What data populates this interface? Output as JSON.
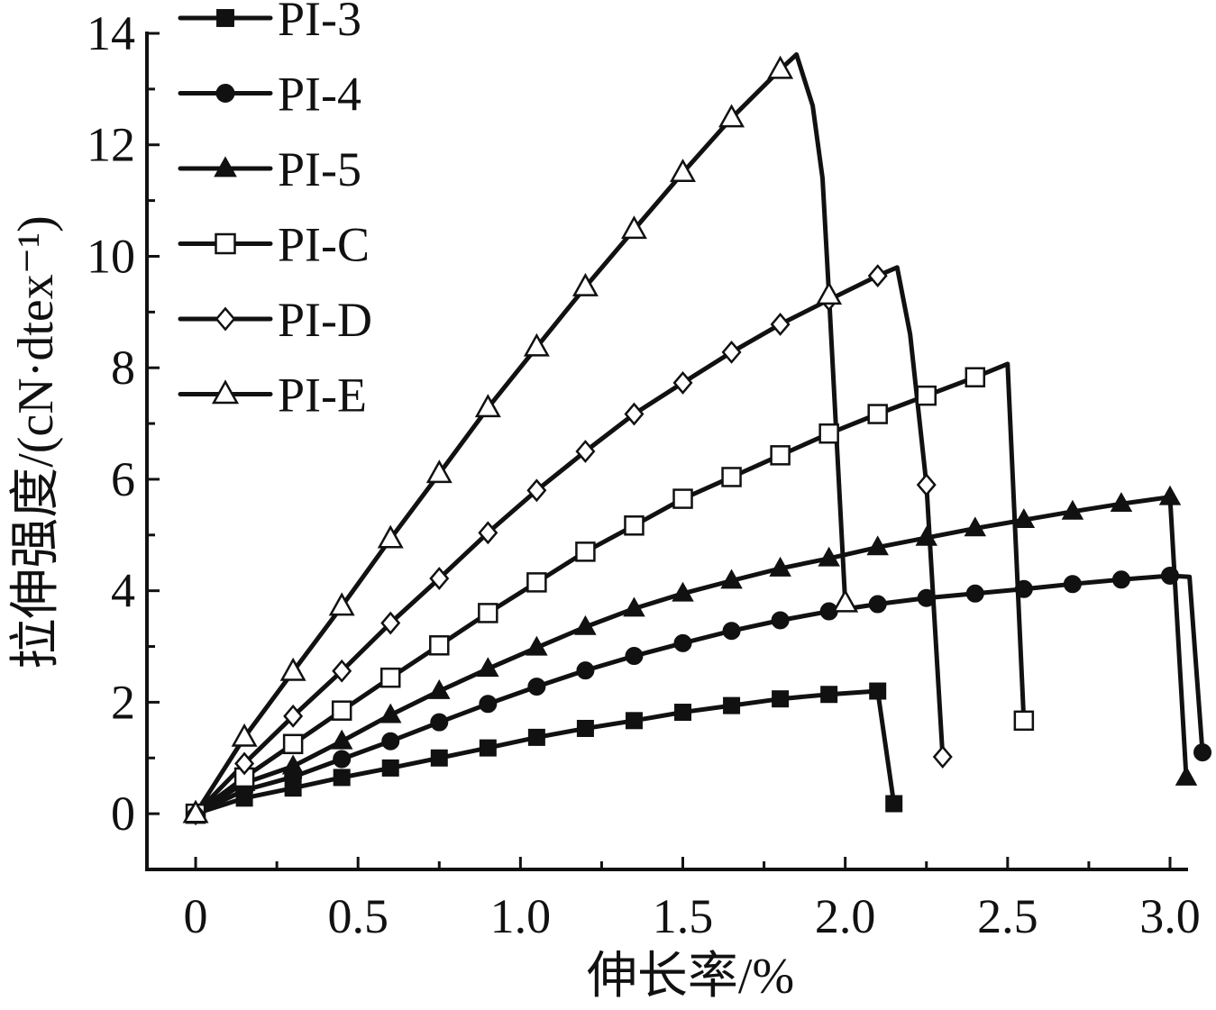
{
  "chart_data": {
    "type": "line",
    "xlabel": "伸长率/%",
    "ylabel": "拉伸强度/(cN·dtex⁻¹)",
    "xlim": [
      -0.15,
      3.05
    ],
    "ylim": [
      -1,
      14
    ],
    "xticks": [
      0,
      0.5,
      1.0,
      1.5,
      2.0,
      2.5,
      3.0
    ],
    "xtick_labels": [
      "0",
      "0.5",
      "1.0",
      "1.5",
      "2.0",
      "2.5",
      "3.0"
    ],
    "x_minor_step": 0.25,
    "yticks": [
      0,
      2,
      4,
      6,
      8,
      10,
      12,
      14
    ],
    "ytick_labels": [
      "0",
      "2",
      "4",
      "6",
      "8",
      "10",
      "12",
      "14"
    ],
    "y_minor_step": 1,
    "grid": false,
    "legend": "top-left",
    "line_color": "#111111",
    "series": [
      {
        "name": "PI-3",
        "marker": "square-filled",
        "x": [
          0,
          0.15,
          0.3,
          0.45,
          0.6,
          0.75,
          0.9,
          1.05,
          1.2,
          1.35,
          1.5,
          1.65,
          1.8,
          1.95,
          2.1,
          2.15
        ],
        "y": [
          0,
          0.28,
          0.46,
          0.65,
          0.82,
          1.0,
          1.18,
          1.37,
          1.53,
          1.67,
          1.82,
          1.94,
          2.06,
          2.14,
          2.2,
          0.18
        ]
      },
      {
        "name": "PI-4",
        "marker": "circle-filled",
        "x": [
          0,
          0.15,
          0.3,
          0.45,
          0.6,
          0.75,
          0.9,
          1.05,
          1.2,
          1.35,
          1.5,
          1.65,
          1.8,
          1.95,
          2.1,
          2.25,
          2.4,
          2.55,
          2.7,
          2.85,
          3.0,
          3.06,
          3.1
        ],
        "y": [
          0,
          0.42,
          0.66,
          0.98,
          1.3,
          1.64,
          1.97,
          2.28,
          2.57,
          2.83,
          3.06,
          3.28,
          3.47,
          3.63,
          3.76,
          3.87,
          3.95,
          4.03,
          4.12,
          4.2,
          4.27,
          4.25,
          1.1
        ],
        "no_marker_at": [
          3.06
        ]
      },
      {
        "name": "PI-5",
        "marker": "triangle-filled",
        "x": [
          0,
          0.15,
          0.3,
          0.45,
          0.6,
          0.75,
          0.9,
          1.05,
          1.2,
          1.35,
          1.5,
          1.65,
          1.8,
          1.95,
          2.1,
          2.25,
          2.4,
          2.55,
          2.7,
          2.85,
          3.0,
          3.05
        ],
        "y": [
          0,
          0.55,
          0.85,
          1.3,
          1.77,
          2.2,
          2.6,
          2.98,
          3.35,
          3.68,
          3.95,
          4.18,
          4.4,
          4.58,
          4.78,
          4.95,
          5.12,
          5.27,
          5.42,
          5.56,
          5.68,
          0.65
        ]
      },
      {
        "name": "PI-C",
        "marker": "square-open",
        "x": [
          0,
          0.15,
          0.3,
          0.45,
          0.6,
          0.75,
          0.9,
          1.05,
          1.2,
          1.35,
          1.5,
          1.65,
          1.8,
          1.95,
          2.1,
          2.25,
          2.4,
          2.5,
          2.55
        ],
        "y": [
          0,
          0.65,
          1.25,
          1.85,
          2.44,
          3.02,
          3.6,
          4.15,
          4.7,
          5.17,
          5.65,
          6.04,
          6.43,
          6.82,
          7.17,
          7.5,
          7.83,
          8.07,
          1.67
        ],
        "no_marker_at": [
          2.5
        ]
      },
      {
        "name": "PI-D",
        "marker": "diamond-open",
        "x": [
          0,
          0.15,
          0.3,
          0.45,
          0.6,
          0.75,
          0.9,
          1.05,
          1.2,
          1.35,
          1.5,
          1.65,
          1.8,
          1.95,
          2.1,
          2.16,
          2.2,
          2.25,
          2.3
        ],
        "y": [
          0,
          0.9,
          1.75,
          2.56,
          3.42,
          4.22,
          5.04,
          5.8,
          6.5,
          7.17,
          7.73,
          8.28,
          8.78,
          9.22,
          9.65,
          9.8,
          8.6,
          5.9,
          1.02
        ],
        "no_marker_at": [
          2.16,
          2.2
        ]
      },
      {
        "name": "PI-E",
        "marker": "triangle-open",
        "x": [
          0,
          0.15,
          0.3,
          0.45,
          0.6,
          0.75,
          0.9,
          1.05,
          1.2,
          1.35,
          1.5,
          1.65,
          1.8,
          1.85,
          1.9,
          1.93,
          1.95,
          2.0
        ],
        "y": [
          0,
          1.37,
          2.55,
          3.72,
          4.93,
          6.1,
          7.28,
          8.37,
          9.45,
          10.48,
          11.5,
          12.48,
          13.35,
          13.62,
          12.7,
          11.4,
          9.3,
          3.78
        ],
        "no_marker_at": [
          1.85,
          1.9,
          1.93
        ]
      }
    ]
  }
}
